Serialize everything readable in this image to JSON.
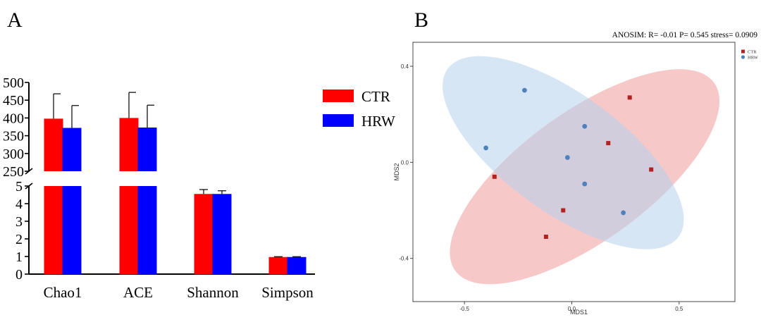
{
  "chart_data": [
    {
      "panel_label": "A",
      "type": "bar",
      "categories": [
        "Chao1",
        "ACE",
        "Shannon",
        "Simpson"
      ],
      "series": [
        {
          "name": "CTR",
          "color": "#ff0000",
          "values": [
            398,
            400,
            4.55,
            0.97
          ],
          "errors": [
            70,
            72,
            0.25,
            0.02
          ]
        },
        {
          "name": "HRW",
          "color": "#0000ff",
          "values": [
            372,
            373,
            4.55,
            0.97
          ],
          "errors": [
            63,
            63,
            0.18,
            0.02
          ]
        }
      ],
      "axis_break": {
        "upper_range": [
          250,
          500
        ],
        "upper_ticks": [
          "500",
          "450",
          "400",
          "350",
          "300",
          "250"
        ],
        "lower_range": [
          0,
          5
        ],
        "lower_ticks": [
          "5",
          "4",
          "3",
          "2",
          "1",
          "0"
        ]
      },
      "legend_position": "right"
    },
    {
      "panel_label": "B",
      "type": "scatter",
      "title": "ANOSIM:  R= -0.01  P= 0.545  stress= 0.0909",
      "xlabel": "MDS1",
      "ylabel": "MDS2",
      "xlim": [
        -0.74,
        0.76
      ],
      "ylim": [
        -0.58,
        0.5
      ],
      "xticks": [
        "-0.5",
        "0.0",
        "0.5"
      ],
      "yticks": [
        "0.4",
        "0.0",
        "-0.4"
      ],
      "series": [
        {
          "name": "CTR",
          "color": "#b22222",
          "marker": "square",
          "points": [
            [
              0.27,
              0.27
            ],
            [
              0.17,
              0.08
            ],
            [
              0.37,
              -0.03
            ],
            [
              -0.36,
              -0.06
            ],
            [
              -0.04,
              -0.2
            ],
            [
              -0.12,
              -0.31
            ]
          ],
          "ellipse": {
            "color": "#f2a7a7",
            "center": [
              0.06,
              -0.06
            ],
            "rx": 0.745,
            "ry": 0.3,
            "angle_deg": 36
          }
        },
        {
          "name": "HRW",
          "color": "#4f81bd",
          "marker": "circle",
          "points": [
            [
              -0.22,
              0.3
            ],
            [
              0.06,
              0.15
            ],
            [
              -0.4,
              0.06
            ],
            [
              -0.02,
              0.02
            ],
            [
              0.06,
              -0.09
            ],
            [
              0.24,
              -0.21
            ]
          ],
          "ellipse": {
            "color": "#b5d1ec",
            "center": [
              -0.04,
              0.04
            ],
            "rx": 0.665,
            "ry": 0.275,
            "angle_deg": -36
          }
        }
      ],
      "legend_position": "top-right"
    }
  ]
}
